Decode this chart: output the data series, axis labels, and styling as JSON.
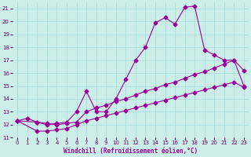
{
  "xlabel": "Windchill (Refroidissement éolien,°C)",
  "bg_color": "#cceee8",
  "grid_color": "#aadddd",
  "line_color": "#990099",
  "ylim": [
    11,
    21.5
  ],
  "xlim": [
    -0.5,
    23.5
  ],
  "yticks": [
    11,
    12,
    13,
    14,
    15,
    16,
    17,
    18,
    19,
    20,
    21
  ],
  "xticks": [
    0,
    1,
    2,
    3,
    4,
    5,
    6,
    7,
    8,
    9,
    10,
    11,
    12,
    13,
    14,
    15,
    16,
    17,
    18,
    19,
    20,
    21,
    22,
    23
  ],
  "line1_x": [
    0,
    1,
    2,
    3,
    4,
    5,
    6,
    7,
    8,
    9,
    10,
    11,
    12,
    13,
    14,
    15,
    16,
    17,
    18,
    19,
    20,
    21,
    22,
    23
  ],
  "line1_y": [
    12.3,
    12.5,
    12.2,
    12.0,
    12.1,
    12.2,
    13.0,
    14.6,
    13.0,
    13.0,
    14.0,
    15.5,
    17.0,
    18.0,
    19.9,
    20.3,
    19.8,
    21.1,
    21.2,
    17.8,
    17.4,
    17.0,
    17.0,
    16.2
  ],
  "line2_x": [
    0,
    2,
    3,
    4,
    5,
    6,
    7,
    8,
    9,
    10,
    11,
    12,
    13,
    14,
    15,
    16,
    17,
    18,
    19,
    20,
    21,
    22,
    23
  ],
  "line2_y": [
    12.3,
    12.2,
    12.1,
    12.0,
    12.1,
    12.2,
    13.0,
    13.3,
    13.5,
    13.8,
    14.0,
    14.3,
    14.6,
    14.8,
    15.1,
    15.3,
    15.6,
    15.9,
    16.1,
    16.4,
    16.7,
    17.0,
    15.0
  ],
  "line3_x": [
    0,
    2,
    3,
    4,
    5,
    6,
    7,
    8,
    9,
    10,
    11,
    12,
    13,
    14,
    15,
    16,
    17,
    18,
    19,
    20,
    21,
    22,
    23
  ],
  "line3_y": [
    12.3,
    11.5,
    11.5,
    11.6,
    11.7,
    12.0,
    12.3,
    12.5,
    12.7,
    12.9,
    13.1,
    13.3,
    13.5,
    13.7,
    13.9,
    14.1,
    14.3,
    14.5,
    14.7,
    14.9,
    15.1,
    15.3,
    14.9
  ],
  "marker": "D",
  "markersize": 2.5,
  "linewidth": 0.8
}
